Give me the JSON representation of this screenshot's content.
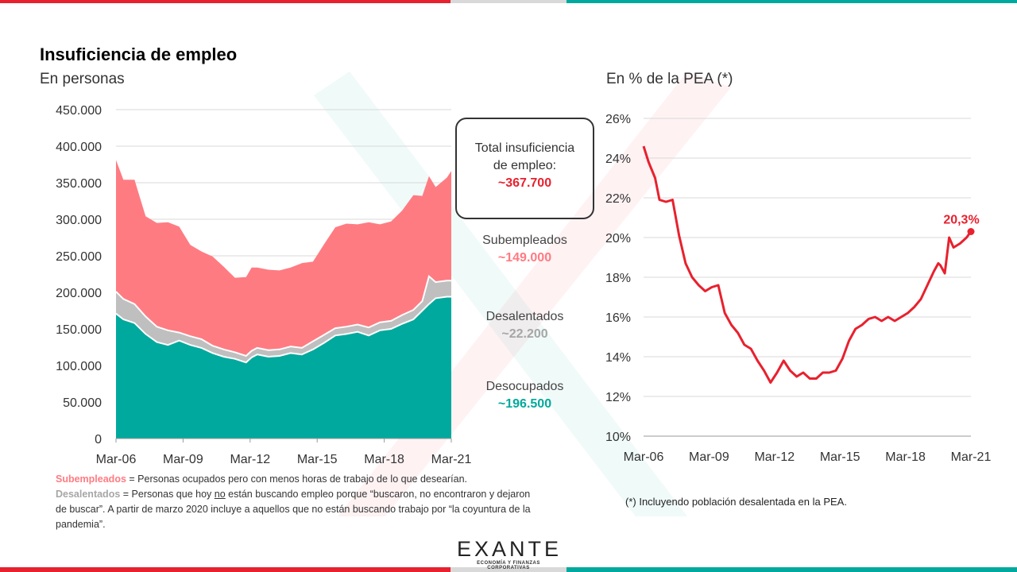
{
  "header": {
    "title": "Insuficiencia de empleo",
    "subtitle_left": "En personas",
    "subtitle_right": "En % de la PEA (*)"
  },
  "summary": {
    "total_label_1": "Total  insuficiencia",
    "total_label_2": "de empleo:",
    "total_value": "~367.700",
    "subempleados_label": "Subempleados",
    "subempleados_value": "~149.000",
    "desalentados_label": "Desalentados",
    "desalentados_value": "~22.200",
    "desocupados_label": "Desocupados",
    "desocupados_value": "~196.500"
  },
  "notes": {
    "subempleados_term": "Subempleados",
    "subempleados_def": " = Personas ocupados pero con menos horas de  trabajo de lo que desearían.",
    "desalentados_term": "Desalentados",
    "desalentados_def_1": " = Personas que hoy ",
    "desalentados_def_no": "no",
    "desalentados_def_2": " están buscando empleo porque  “buscaron, no encontraron  y dejaron de buscar”. A partir de marzo 2020 incluye a aquellos que no están buscando trabajo por  “la coyuntura de la pandemia”.",
    "pea_note": "(*) Incluyendo población desalentada en la PEA."
  },
  "logo": {
    "name": "EXANTE",
    "tagline": "ECONOMÍA Y FINANZAS CORPORATIVAS"
  },
  "colors": {
    "desocupados": "#00a99d",
    "desalentados": "#bfbfbf",
    "subempleados": "#ff7b82",
    "line": "#e8212e",
    "top_red": "#e8212e",
    "top_teal": "#00a99d"
  },
  "chart_data": [
    {
      "type": "area",
      "stacked": true,
      "subtitle": "En personas",
      "x": [
        2006.17,
        2006.5,
        2007,
        2007.5,
        2008,
        2008.5,
        2009,
        2009.5,
        2010,
        2010.5,
        2011,
        2011.5,
        2012,
        2012.25,
        2012.5,
        2013,
        2013.5,
        2014,
        2014.5,
        2015,
        2015.5,
        2016,
        2016.5,
        2017,
        2017.5,
        2018,
        2018.5,
        2019,
        2019.5,
        2019.9,
        2020.2,
        2020.5,
        2021,
        2021.2
      ],
      "series": [
        {
          "name": "Desocupados",
          "values": [
            171000,
            163000,
            158000,
            143000,
            132000,
            128000,
            134000,
            128000,
            124000,
            117000,
            112000,
            109000,
            104000,
            111000,
            115000,
            112000,
            113000,
            117000,
            115000,
            122000,
            131000,
            141000,
            143000,
            146000,
            141000,
            148000,
            150000,
            157000,
            163000,
            175000,
            184000,
            192000,
            194000,
            194000
          ]
        },
        {
          "name": "Desalentados",
          "values": [
            30000,
            28000,
            26000,
            24000,
            21000,
            20000,
            11000,
            12000,
            12000,
            10000,
            10000,
            9000,
            9000,
            9000,
            9000,
            9000,
            9000,
            9000,
            9000,
            11000,
            11000,
            10000,
            10000,
            10000,
            11000,
            11000,
            11000,
            12000,
            13000,
            13000,
            38000,
            22000,
            22000,
            22000
          ]
        },
        {
          "name": "Subempleados",
          "values": [
            180000,
            163000,
            170000,
            137000,
            142000,
            148000,
            145000,
            125000,
            120000,
            122000,
            113000,
            102000,
            108000,
            114000,
            110000,
            110000,
            108000,
            108000,
            116000,
            109000,
            124000,
            138000,
            141000,
            137000,
            144000,
            134000,
            136000,
            143000,
            157000,
            144000,
            137000,
            130000,
            141000,
            150000
          ]
        }
      ],
      "xticks": [
        "Mar-06",
        "Mar-09",
        "Mar-12",
        "Mar-15",
        "Mar-18",
        "Mar-21"
      ],
      "yticks": [
        "0",
        "50.000",
        "100.000",
        "150.000",
        "200.000",
        "250.000",
        "300.000",
        "350.000",
        "400.000",
        "450.000"
      ],
      "ylim": [
        0,
        450000
      ],
      "xlim": [
        2006.17,
        2021.2
      ],
      "grid": true
    },
    {
      "type": "line",
      "subtitle": "En % de la PEA (*)",
      "x": [
        2006.17,
        2006.4,
        2006.7,
        2006.9,
        2007.2,
        2007.5,
        2007.8,
        2008.1,
        2008.4,
        2008.7,
        2009,
        2009.3,
        2009.6,
        2009.9,
        2010.2,
        2010.5,
        2010.8,
        2011.1,
        2011.4,
        2011.7,
        2012,
        2012.3,
        2012.6,
        2012.9,
        2013.2,
        2013.5,
        2013.8,
        2014.1,
        2014.4,
        2014.7,
        2015,
        2015.3,
        2015.6,
        2015.9,
        2016.2,
        2016.5,
        2016.8,
        2017.1,
        2017.4,
        2017.7,
        2018,
        2018.3,
        2018.6,
        2018.9,
        2019.2,
        2019.5,
        2019.7,
        2019.8,
        2020,
        2020.2,
        2020.4,
        2020.7,
        2021,
        2021.2
      ],
      "values": [
        24.6,
        23.8,
        23.0,
        21.9,
        21.8,
        21.9,
        20.1,
        18.7,
        18.0,
        17.6,
        17.3,
        17.5,
        17.6,
        16.2,
        15.6,
        15.2,
        14.6,
        14.4,
        13.8,
        13.3,
        12.7,
        13.2,
        13.8,
        13.3,
        13.0,
        13.2,
        12.9,
        12.9,
        13.2,
        13.2,
        13.3,
        13.9,
        14.8,
        15.4,
        15.6,
        15.9,
        16.0,
        15.8,
        16.0,
        15.8,
        16.0,
        16.2,
        16.5,
        16.9,
        17.6,
        18.3,
        18.7,
        18.6,
        18.2,
        20.0,
        19.5,
        19.7,
        20.0,
        20.3
      ],
      "annotation": "20,3%",
      "xticks": [
        "Mar-06",
        "Mar-09",
        "Mar-12",
        "Mar-15",
        "Mar-18",
        "Mar-21"
      ],
      "yticks": [
        "10%",
        "12%",
        "14%",
        "16%",
        "18%",
        "20%",
        "22%",
        "24%",
        "26%"
      ],
      "ylim": [
        10,
        26
      ],
      "xlim": [
        2006.17,
        2021.2
      ],
      "grid": true
    }
  ]
}
